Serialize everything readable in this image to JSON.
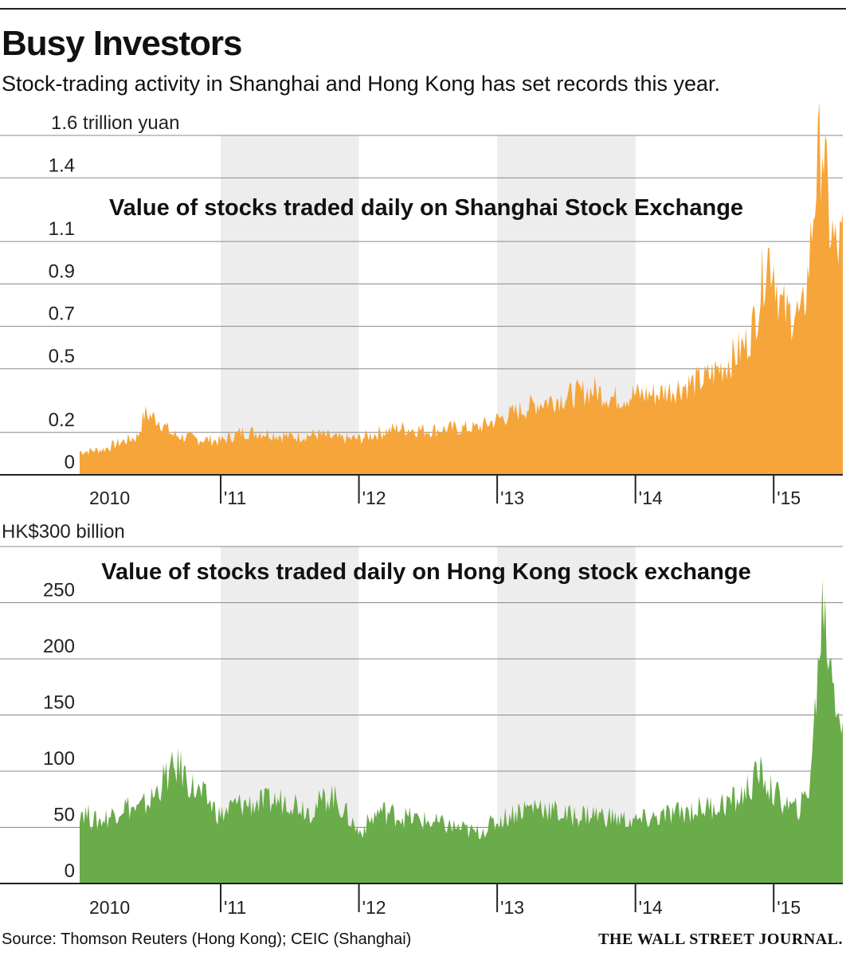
{
  "header": {
    "title": "Busy Investors",
    "subtitle": "Stock-trading activity in Shanghai and Hong Kong has set records this year."
  },
  "footer": {
    "source": "Source: Thomson Reuters (Hong Kong); CEIC (Shanghai)",
    "publisher": "THE WALL STREET JOURNAL."
  },
  "colors": {
    "shanghai": "#f6a53a",
    "hongkong": "#6aab4a",
    "shade": "#ededed",
    "grid": "#555555"
  },
  "chart_data": [
    {
      "type": "area",
      "title": "Value of stocks traded daily on Shanghai Stock Exchange",
      "unit_label": "1.6 trillion yuan",
      "yticks": [
        "1.4",
        "1.1",
        "0.9",
        "0.7",
        "0.5",
        "0.2",
        "0"
      ],
      "ylim": [
        0,
        1.6
      ],
      "xlim": [
        2009.98,
        2015.5
      ],
      "xticks": [
        "2010",
        "'11",
        "'12",
        "'13",
        "'14",
        "'15"
      ],
      "shaded_years": [
        "2011",
        "2013"
      ],
      "color": "#f6a53a",
      "x": [
        2010.0,
        2010.15,
        2010.3,
        2010.4,
        2010.45,
        2010.55,
        2010.65,
        2010.8,
        2011.0,
        2011.15,
        2011.3,
        2011.5,
        2011.7,
        2011.85,
        2012.0,
        2012.15,
        2012.3,
        2012.5,
        2012.7,
        2012.85,
        2013.0,
        2013.15,
        2013.3,
        2013.5,
        2013.7,
        2013.85,
        2014.0,
        2014.15,
        2014.3,
        2014.5,
        2014.6,
        2014.7,
        2014.8,
        2014.85,
        2014.9,
        2014.95,
        2015.0,
        2015.05,
        2015.1,
        2015.15,
        2015.2,
        2015.25,
        2015.3,
        2015.35,
        2015.4,
        2015.45,
        2015.5
      ],
      "values": [
        0.11,
        0.12,
        0.16,
        0.18,
        0.29,
        0.26,
        0.19,
        0.17,
        0.16,
        0.2,
        0.2,
        0.18,
        0.19,
        0.17,
        0.17,
        0.2,
        0.22,
        0.21,
        0.22,
        0.22,
        0.26,
        0.3,
        0.34,
        0.37,
        0.4,
        0.36,
        0.38,
        0.38,
        0.41,
        0.45,
        0.5,
        0.55,
        0.62,
        0.7,
        0.85,
        1.05,
        1.0,
        0.8,
        0.75,
        0.78,
        0.72,
        0.95,
        1.35,
        1.62,
        1.2,
        1.05,
        1.1
      ]
    },
    {
      "type": "area",
      "title": "Value of stocks traded daily on Hong Kong stock exchange",
      "unit_label": "HK$300 billion",
      "yticks": [
        "250",
        "200",
        "150",
        "100",
        "50",
        "0"
      ],
      "ylim": [
        0,
        300
      ],
      "xlim": [
        2009.98,
        2015.5
      ],
      "xticks": [
        "2010",
        "'11",
        "'12",
        "'13",
        "'14",
        "'15"
      ],
      "shaded_years": [
        "2011",
        "2013"
      ],
      "color": "#6aab4a",
      "x": [
        2010.0,
        2010.1,
        2010.2,
        2010.3,
        2010.4,
        2010.5,
        2010.6,
        2010.7,
        2010.8,
        2010.9,
        2011.0,
        2011.1,
        2011.3,
        2011.5,
        2011.65,
        2011.8,
        2011.95,
        2012.0,
        2012.15,
        2012.3,
        2012.5,
        2012.7,
        2012.85,
        2013.0,
        2013.15,
        2013.3,
        2013.5,
        2013.7,
        2013.85,
        2014.0,
        2014.2,
        2014.4,
        2014.6,
        2014.75,
        2014.85,
        2014.9,
        2015.0,
        2015.1,
        2015.15,
        2015.2,
        2015.25,
        2015.3,
        2015.35,
        2015.4,
        2015.45,
        2015.5
      ],
      "values": [
        65,
        55,
        60,
        70,
        65,
        75,
        95,
        105,
        85,
        75,
        60,
        70,
        72,
        75,
        65,
        80,
        55,
        45,
        65,
        60,
        55,
        50,
        45,
        55,
        65,
        70,
        60,
        62,
        58,
        55,
        60,
        65,
        70,
        75,
        90,
        100,
        80,
        70,
        65,
        70,
        80,
        150,
        250,
        210,
        170,
        140
      ]
    }
  ]
}
